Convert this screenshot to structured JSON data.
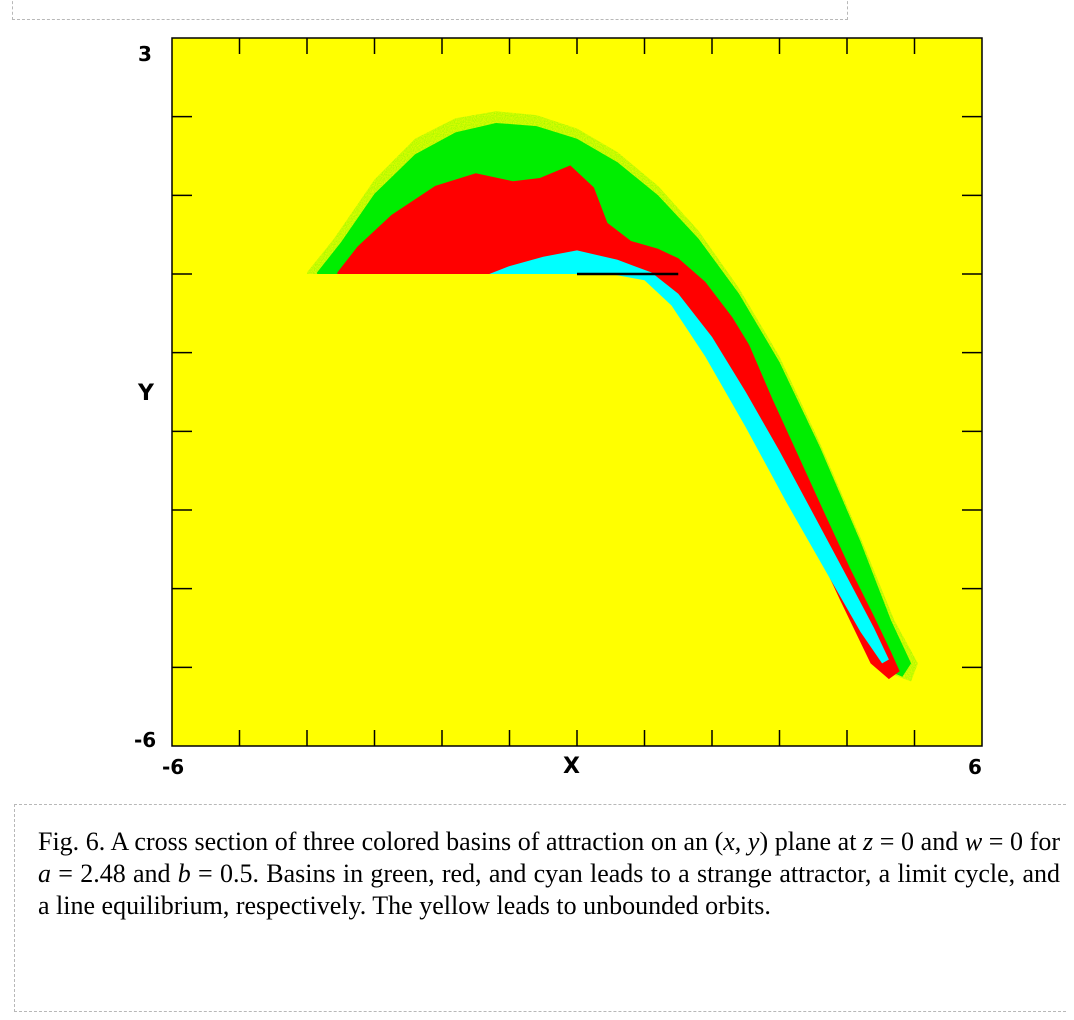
{
  "chart_data": {
    "type": "heatmap",
    "title": "",
    "xlabel": "X",
    "ylabel": "Y",
    "xlim": [
      -6,
      6
    ],
    "ylim": [
      -6,
      3
    ],
    "x_tick_labels": [
      "-6",
      "6"
    ],
    "y_tick_labels": [
      "3",
      "-6"
    ],
    "grid": false,
    "regions": [
      {
        "color": "yellow",
        "hex": "#ffff00",
        "meaning": "unbounded orbits"
      },
      {
        "color": "green",
        "hex": "#00ee00",
        "meaning": "strange attractor"
      },
      {
        "color": "red",
        "hex": "#ff0000",
        "meaning": "limit cycle"
      },
      {
        "color": "cyan",
        "hex": "#00ffff",
        "meaning": "line equilibrium"
      }
    ],
    "line_equilibrium_segment": {
      "y": 0,
      "x": [
        0,
        1.5
      ]
    }
  },
  "caption": {
    "fig_label": "Fig. 6.",
    "segments": [
      {
        "text": " A cross section of three colored basins of attraction on an (",
        "italic": false
      },
      {
        "text": "x, y",
        "italic": true
      },
      {
        "text": ") plane at ",
        "italic": false
      },
      {
        "text": "z",
        "italic": true
      },
      {
        "text": " = 0 and ",
        "italic": false
      },
      {
        "text": "w",
        "italic": true
      },
      {
        "text": " = 0 for ",
        "italic": false
      },
      {
        "text": "a",
        "italic": true
      },
      {
        "text": " = 2.48 and ",
        "italic": false
      },
      {
        "text": "b",
        "italic": true
      },
      {
        "text": " = 0.5. Basins in green, red, and cyan leads to a strange attractor, a limit cycle, and a line equilibrium, respectively. The yellow leads to unbounded orbits.",
        "italic": false
      }
    ]
  }
}
